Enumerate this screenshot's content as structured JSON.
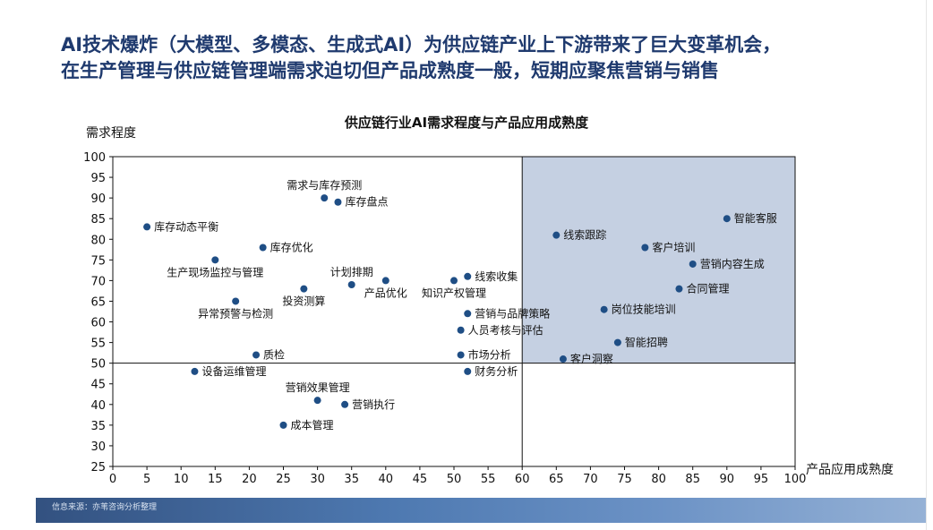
{
  "headline": {
    "line1": "AI技术爆炸（大模型、多模态、生成式AI）为供应链产业上下游带来了巨大变革机会，",
    "line2": "在生产管理与供应链管理端需求迫切但产品成熟度一般，短期应聚焦营销与销售"
  },
  "footer": {
    "source": "信息来源：亦苇咨询分析整理"
  },
  "colors": {
    "title": "#1f3a6e",
    "point": "#1f4e85",
    "quadrant": "#c5d0e2"
  },
  "chart_data": {
    "type": "scatter",
    "title": "供应链行业AI需求程度与产品应用成熟度",
    "xlabel": "产品应用成熟度",
    "ylabel": "需求程度",
    "xlim": [
      0,
      100
    ],
    "ylim": [
      25,
      100
    ],
    "x_ticks": [
      0,
      5,
      10,
      15,
      20,
      25,
      30,
      35,
      40,
      45,
      50,
      55,
      60,
      65,
      70,
      75,
      80,
      85,
      90,
      95,
      100
    ],
    "y_ticks": [
      25,
      30,
      35,
      40,
      45,
      50,
      55,
      60,
      65,
      70,
      75,
      80,
      85,
      90,
      95,
      100
    ],
    "divider": {
      "x": 60,
      "y": 50
    },
    "highlight_quadrant": "top-right",
    "grid": false,
    "points": [
      {
        "label": "需求与库存预测",
        "x": 31,
        "y": 90,
        "pos": "above-left"
      },
      {
        "label": "库存盘点",
        "x": 33,
        "y": 89,
        "pos": "right"
      },
      {
        "label": "库存动态平衡",
        "x": 5,
        "y": 83,
        "pos": "right"
      },
      {
        "label": "库存优化",
        "x": 22,
        "y": 78,
        "pos": "right"
      },
      {
        "label": "生产现场监控与管理",
        "x": 15,
        "y": 75,
        "pos": "below"
      },
      {
        "label": "计划排期",
        "x": 35,
        "y": 69,
        "pos": "above-left"
      },
      {
        "label": "产品优化",
        "x": 40,
        "y": 70,
        "pos": "below-left"
      },
      {
        "label": "投资测算",
        "x": 28,
        "y": 68,
        "pos": "below"
      },
      {
        "label": "异常预警与检测",
        "x": 18,
        "y": 65,
        "pos": "below"
      },
      {
        "label": "线索收集",
        "x": 52,
        "y": 71,
        "pos": "right"
      },
      {
        "label": "知识产权管理",
        "x": 50,
        "y": 70,
        "pos": "below"
      },
      {
        "label": "营销与品牌策略",
        "x": 52,
        "y": 62,
        "pos": "right"
      },
      {
        "label": "人员考核与评估",
        "x": 51,
        "y": 58,
        "pos": "right"
      },
      {
        "label": "市场分析",
        "x": 51,
        "y": 52,
        "pos": "right"
      },
      {
        "label": "财务分析",
        "x": 52,
        "y": 48,
        "pos": "right"
      },
      {
        "label": "质检",
        "x": 21,
        "y": 52,
        "pos": "right"
      },
      {
        "label": "设备运维管理",
        "x": 12,
        "y": 48,
        "pos": "right"
      },
      {
        "label": "营销效果管理",
        "x": 30,
        "y": 41,
        "pos": "above"
      },
      {
        "label": "营销执行",
        "x": 34,
        "y": 40,
        "pos": "right"
      },
      {
        "label": "成本管理",
        "x": 25,
        "y": 35,
        "pos": "right"
      },
      {
        "label": "智能客服",
        "x": 90,
        "y": 85,
        "pos": "right"
      },
      {
        "label": "线索跟踪",
        "x": 65,
        "y": 81,
        "pos": "right"
      },
      {
        "label": "客户培训",
        "x": 78,
        "y": 78,
        "pos": "right"
      },
      {
        "label": "营销内容生成",
        "x": 85,
        "y": 74,
        "pos": "right"
      },
      {
        "label": "合同管理",
        "x": 83,
        "y": 68,
        "pos": "right"
      },
      {
        "label": "岗位技能培训",
        "x": 72,
        "y": 63,
        "pos": "right"
      },
      {
        "label": "智能招聘",
        "x": 74,
        "y": 55,
        "pos": "right"
      },
      {
        "label": "客户洞察",
        "x": 66,
        "y": 51,
        "pos": "right"
      }
    ]
  }
}
